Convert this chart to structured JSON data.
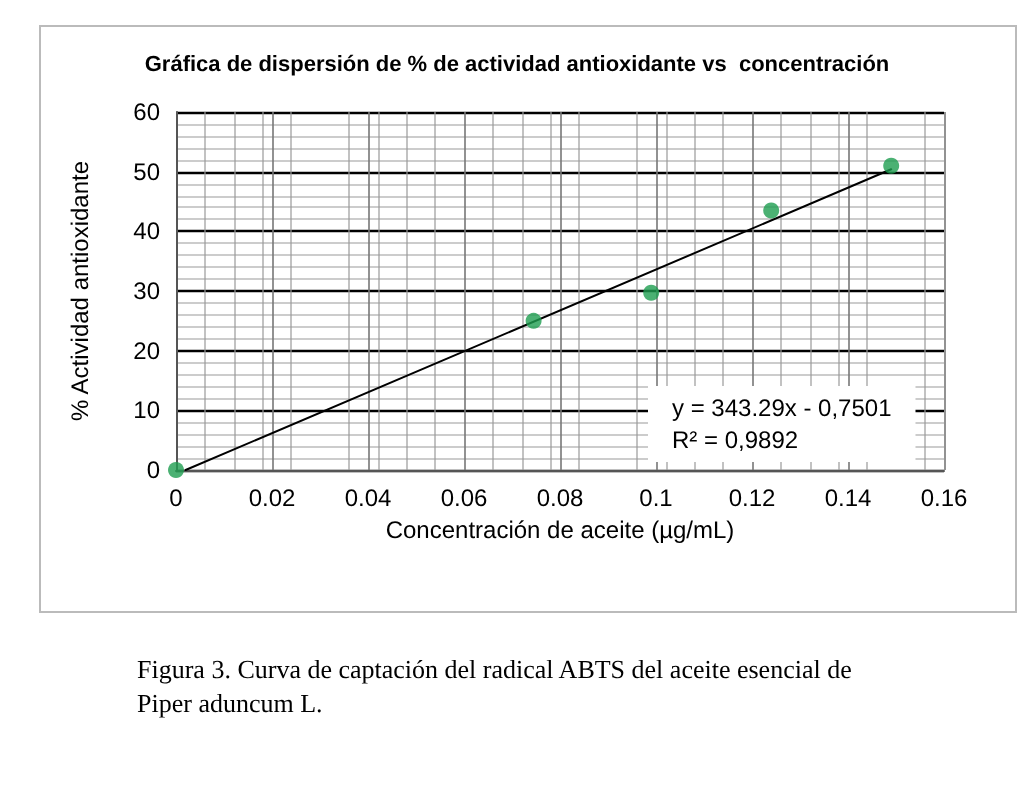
{
  "chart_data": {
    "type": "scatter",
    "title": "Gráfica de dispersión de % de actividad antioxidante vs  concentración",
    "xlabel": "Concentración de aceite (µg/mL)",
    "ylabel": "% Actividad antioxidante",
    "series": [
      {
        "color": "#1e9e50",
        "x": [
          0,
          0.0745,
          0.099,
          0.124,
          0.149
        ],
        "values": [
          0,
          25,
          29.7,
          43.5,
          51
        ],
        "marker": "circle"
      },
      {
        "type": "line",
        "color": "#000000",
        "x": [
          0.002,
          0.149
        ],
        "values": [
          0,
          50.4
        ],
        "marker": "none",
        "line_style": "solid"
      }
    ],
    "xlim": [
      0,
      0.16
    ],
    "xticks": [
      0,
      0.02,
      0.04,
      0.06,
      0.08,
      0.1,
      0.12,
      0.14,
      0.16
    ],
    "ylim": [
      0,
      60
    ],
    "yticks": [
      0,
      10,
      20,
      30,
      40,
      50,
      60
    ],
    "grid": true,
    "annotations": [
      "y = 343.29x - 0,7501\nR² = 0,9892",
      "Figura 3. Curva de captación del radical ABTS del aceite esencial de Piper aduncum L."
    ]
  }
}
